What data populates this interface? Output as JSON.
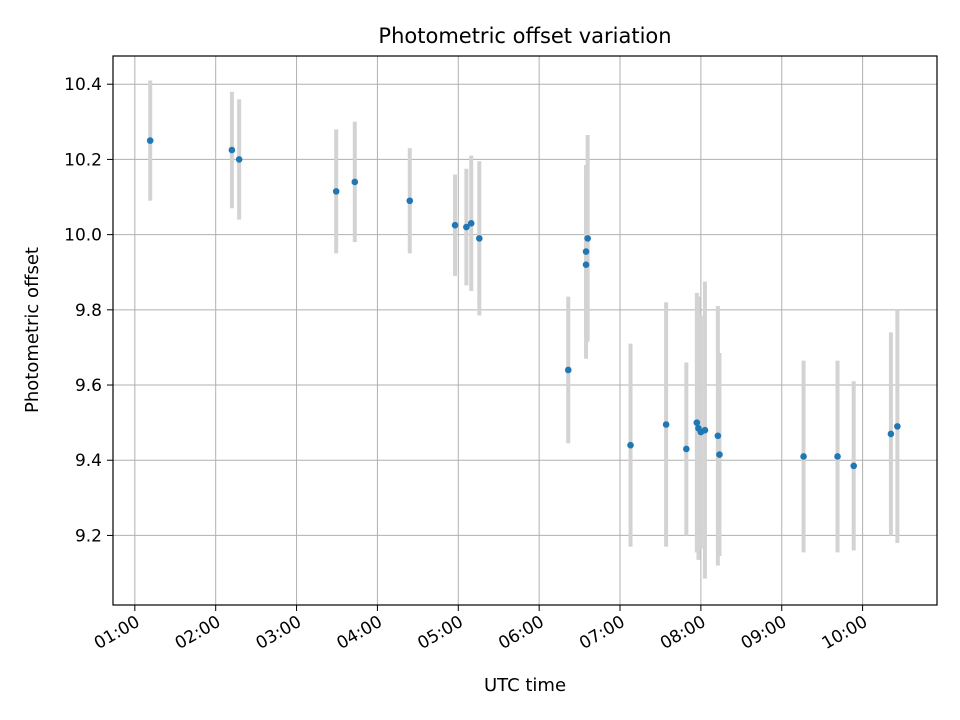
{
  "chart_data": {
    "type": "scatter",
    "title": "Photometric offset variation",
    "xlabel": "UTC time",
    "ylabel": "Photometric offset",
    "x_unit": "hours (UTC time of day)",
    "xlim": [
      0.73,
      10.92
    ],
    "ylim": [
      9.015,
      10.475
    ],
    "grid": true,
    "legend": "none",
    "x_ticks": [
      {
        "value": 1,
        "label": "01:00"
      },
      {
        "value": 2,
        "label": "02:00"
      },
      {
        "value": 3,
        "label": "03:00"
      },
      {
        "value": 4,
        "label": "04:00"
      },
      {
        "value": 5,
        "label": "05:00"
      },
      {
        "value": 6,
        "label": "06:00"
      },
      {
        "value": 7,
        "label": "07:00"
      },
      {
        "value": 8,
        "label": "08:00"
      },
      {
        "value": 9,
        "label": "09:00"
      },
      {
        "value": 10,
        "label": "10:00"
      }
    ],
    "y_ticks": [
      {
        "value": 9.2,
        "label": "9.2"
      },
      {
        "value": 9.4,
        "label": "9.4"
      },
      {
        "value": 9.6,
        "label": "9.6"
      },
      {
        "value": 9.8,
        "label": "9.8"
      },
      {
        "value": 10.0,
        "label": "10.0"
      },
      {
        "value": 10.2,
        "label": "10.2"
      },
      {
        "value": 10.4,
        "label": "10.4"
      }
    ],
    "colors": {
      "marker": "#1f77b4",
      "errorbar": "#d3d3d3",
      "grid": "#b0b0b0"
    },
    "points": [
      {
        "x": 1.19,
        "y": 10.25,
        "err": 0.16
      },
      {
        "x": 2.2,
        "y": 10.225,
        "err": 0.155
      },
      {
        "x": 2.29,
        "y": 10.2,
        "err": 0.16
      },
      {
        "x": 3.49,
        "y": 10.115,
        "err": 0.165
      },
      {
        "x": 3.72,
        "y": 10.14,
        "err": 0.16
      },
      {
        "x": 4.4,
        "y": 10.09,
        "err": 0.14
      },
      {
        "x": 4.96,
        "y": 10.025,
        "err": 0.135
      },
      {
        "x": 5.1,
        "y": 10.02,
        "err": 0.155
      },
      {
        "x": 5.16,
        "y": 10.03,
        "err": 0.18
      },
      {
        "x": 5.26,
        "y": 9.99,
        "err": 0.205
      },
      {
        "x": 6.36,
        "y": 9.64,
        "err": 0.195
      },
      {
        "x": 6.58,
        "y": 9.955,
        "err": 0.23
      },
      {
        "x": 6.58,
        "y": 9.92,
        "err": 0.25
      },
      {
        "x": 6.6,
        "y": 9.99,
        "err": 0.275
      },
      {
        "x": 7.13,
        "y": 9.44,
        "err": 0.27
      },
      {
        "x": 7.57,
        "y": 9.495,
        "err": 0.325
      },
      {
        "x": 7.82,
        "y": 9.43,
        "err": 0.23
      },
      {
        "x": 7.95,
        "y": 9.5,
        "err": 0.345
      },
      {
        "x": 7.97,
        "y": 9.485,
        "err": 0.35
      },
      {
        "x": 8.0,
        "y": 9.475,
        "err": 0.31
      },
      {
        "x": 8.05,
        "y": 9.48,
        "err": 0.395
      },
      {
        "x": 8.21,
        "y": 9.465,
        "err": 0.345
      },
      {
        "x": 8.23,
        "y": 9.415,
        "err": 0.27
      },
      {
        "x": 9.27,
        "y": 9.41,
        "err": 0.255
      },
      {
        "x": 9.69,
        "y": 9.41,
        "err": 0.255
      },
      {
        "x": 9.89,
        "y": 9.385,
        "err": 0.225
      },
      {
        "x": 10.35,
        "y": 9.47,
        "err": 0.27
      },
      {
        "x": 10.43,
        "y": 9.49,
        "err": 0.31
      }
    ]
  }
}
